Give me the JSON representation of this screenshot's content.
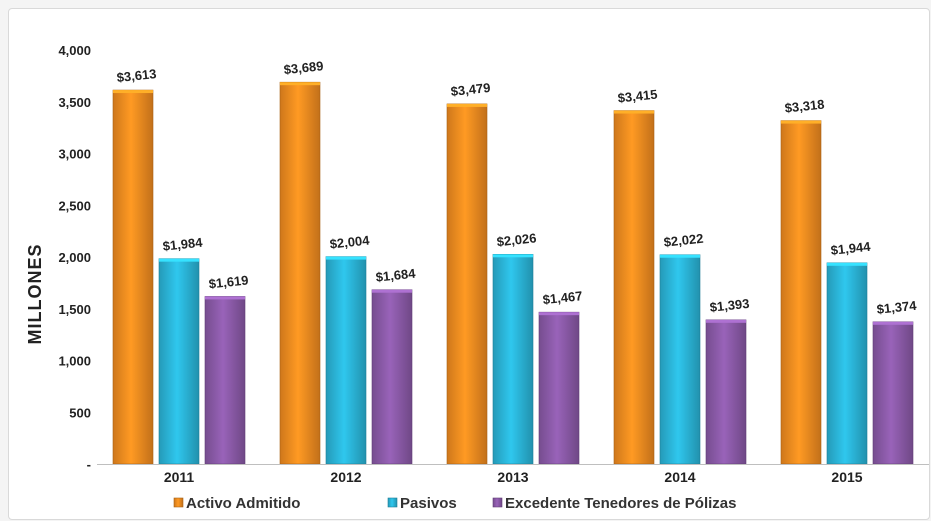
{
  "chart_data": {
    "type": "bar",
    "categories": [
      "2011",
      "2012",
      "2013",
      "2014",
      "2015"
    ],
    "series": [
      {
        "name": "Activo Admitido",
        "values": [
          3613,
          3689,
          3479,
          3415,
          3318
        ],
        "labels": [
          "$3,613",
          "$3,689",
          "$3,479",
          "$3,415",
          "$3,318"
        ],
        "color": "#f28c20"
      },
      {
        "name": "Pasivos",
        "values": [
          1984,
          2004,
          2026,
          2022,
          1944
        ],
        "labels": [
          "$1,984",
          "$2,004",
          "$2,026",
          "$2,022",
          "$1,944"
        ],
        "color": "#2bb5d8"
      },
      {
        "name": "Excedente Tenedores de Pólizas",
        "values": [
          1619,
          1684,
          1467,
          1393,
          1374
        ],
        "labels": [
          "$1,619",
          "$1,684",
          "$1,467",
          "$1,393",
          "$1,374"
        ],
        "color": "#8b5aa8"
      }
    ],
    "ylabel": "MILLONES",
    "xlabel": "",
    "ylim": [
      0,
      4000
    ],
    "yticks": [
      0,
      500,
      1000,
      1500,
      2000,
      2500,
      3000,
      3500,
      4000
    ],
    "ytick_labels": [
      "-",
      "500",
      "1,000",
      "1,500",
      "2,000",
      "2,500",
      "3,000",
      "3,500",
      "4,000"
    ],
    "grid": false,
    "legend_position": "bottom"
  }
}
